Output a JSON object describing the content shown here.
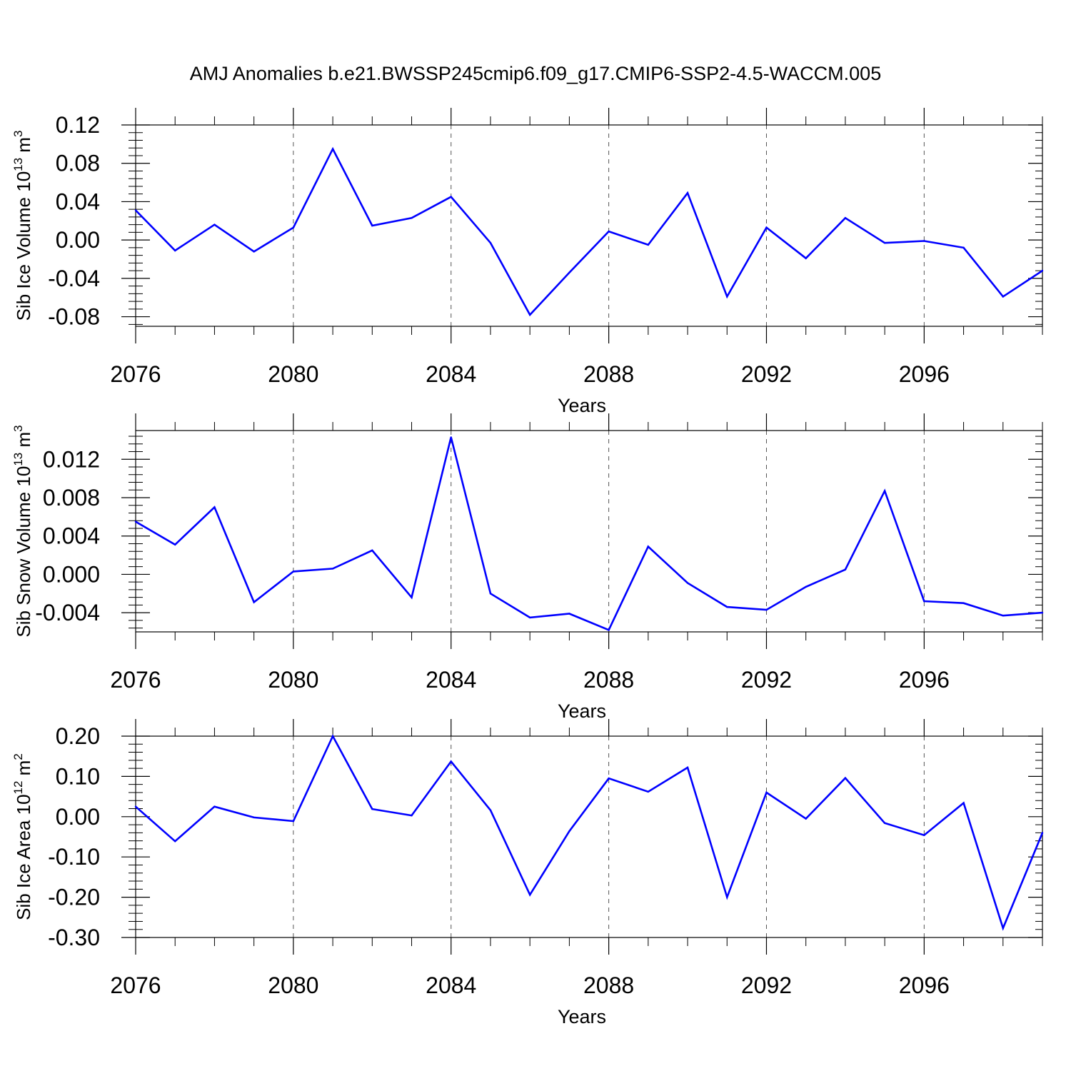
{
  "title": "AMJ Anomalies b.e21.BWSSP245cmip6.f09_g17.CMIP6-SSP2-4.5-WACCM.005",
  "chart_data": [
    {
      "type": "line",
      "xlabel": "Years",
      "ylabel_main": "Sib Ice Volume 10",
      "ylabel_exp": "13",
      "ylabel_unit": " m",
      "ylabel_unit_exp": "3",
      "xlim": [
        2076,
        2099
      ],
      "ylim": [
        -0.09,
        0.12
      ],
      "x_ticks": [
        2076,
        2080,
        2084,
        2088,
        2092,
        2096
      ],
      "x_tick_labels": [
        "2076",
        "2080",
        "2084",
        "2088",
        "2092",
        "2096"
      ],
      "y_ticks": [
        0.12,
        0.08,
        0.04,
        0.0,
        -0.04,
        -0.08
      ],
      "y_tick_labels": [
        "0.12",
        "0.08",
        "0.04",
        "0.00",
        "-0.04",
        "-0.08"
      ],
      "y_minor_step": 0.008,
      "x_minor_step": 1,
      "grid": "vertical dashed at major x ticks",
      "line_color": "#0000ff",
      "x": [
        2076,
        2077,
        2078,
        2079,
        2080,
        2081,
        2082,
        2083,
        2084,
        2085,
        2086,
        2087,
        2088,
        2089,
        2090,
        2091,
        2092,
        2093,
        2094,
        2095,
        2096,
        2097,
        2098,
        2099
      ],
      "values": [
        0.031,
        -0.011,
        0.016,
        -0.012,
        0.013,
        0.095,
        0.015,
        0.023,
        0.045,
        -0.003,
        -0.078,
        -0.034,
        0.009,
        -0.005,
        0.049,
        -0.059,
        0.013,
        -0.019,
        0.023,
        -0.003,
        -0.001,
        -0.008,
        -0.059,
        -0.032
      ]
    },
    {
      "type": "line",
      "xlabel": "Years",
      "ylabel_main": "Sib Snow Volume 10",
      "ylabel_exp": "13",
      "ylabel_unit": " m",
      "ylabel_unit_exp": "3",
      "xlim": [
        2076,
        2099
      ],
      "ylim": [
        -0.006,
        0.015
      ],
      "x_ticks": [
        2076,
        2080,
        2084,
        2088,
        2092,
        2096
      ],
      "x_tick_labels": [
        "2076",
        "2080",
        "2084",
        "2088",
        "2092",
        "2096"
      ],
      "y_ticks": [
        0.012,
        0.008,
        0.004,
        0.0,
        -0.004
      ],
      "y_tick_labels": [
        "0.012",
        "0.008",
        "0.004",
        "0.000",
        "-0.004"
      ],
      "y_minor_step": 0.0008,
      "x_minor_step": 1,
      "grid": "vertical dashed at major x ticks",
      "line_color": "#0000ff",
      "x": [
        2076,
        2077,
        2078,
        2079,
        2080,
        2081,
        2082,
        2083,
        2084,
        2085,
        2086,
        2087,
        2088,
        2089,
        2090,
        2091,
        2092,
        2093,
        2094,
        2095,
        2096,
        2097,
        2098,
        2099
      ],
      "values": [
        0.0055,
        0.0031,
        0.007,
        -0.0029,
        0.0003,
        0.0006,
        0.0025,
        -0.0024,
        0.0143,
        -0.002,
        -0.0045,
        -0.0041,
        -0.0058,
        0.0029,
        -0.0009,
        -0.0034,
        -0.0037,
        -0.0013,
        0.0005,
        0.0087,
        -0.0028,
        -0.003,
        -0.0043,
        -0.004
      ]
    },
    {
      "type": "line",
      "xlabel": "Years",
      "ylabel_main": "Sib Ice Area 10",
      "ylabel_exp": "12",
      "ylabel_unit": " m",
      "ylabel_unit_exp": "2",
      "xlim": [
        2076,
        2099
      ],
      "ylim": [
        -0.3,
        0.2
      ],
      "x_ticks": [
        2076,
        2080,
        2084,
        2088,
        2092,
        2096
      ],
      "x_tick_labels": [
        "2076",
        "2080",
        "2084",
        "2088",
        "2092",
        "2096"
      ],
      "y_ticks": [
        0.2,
        0.1,
        0.0,
        -0.1,
        -0.2,
        -0.3
      ],
      "y_tick_labels": [
        "0.20",
        "0.10",
        "0.00",
        "-0.10",
        "-0.20",
        "-0.30"
      ],
      "y_minor_step": 0.02,
      "x_minor_step": 1,
      "grid": "vertical dashed at major x ticks",
      "line_color": "#0000ff",
      "x": [
        2076,
        2077,
        2078,
        2079,
        2080,
        2081,
        2082,
        2083,
        2084,
        2085,
        2086,
        2087,
        2088,
        2089,
        2090,
        2091,
        2092,
        2093,
        2094,
        2095,
        2096,
        2097,
        2098,
        2099
      ],
      "values": [
        0.025,
        -0.061,
        0.025,
        -0.002,
        -0.011,
        0.2,
        0.019,
        0.003,
        0.137,
        0.016,
        -0.194,
        -0.036,
        0.095,
        0.062,
        0.122,
        -0.2,
        0.06,
        -0.005,
        0.096,
        -0.016,
        -0.046,
        0.034,
        -0.277,
        -0.04
      ]
    }
  ]
}
